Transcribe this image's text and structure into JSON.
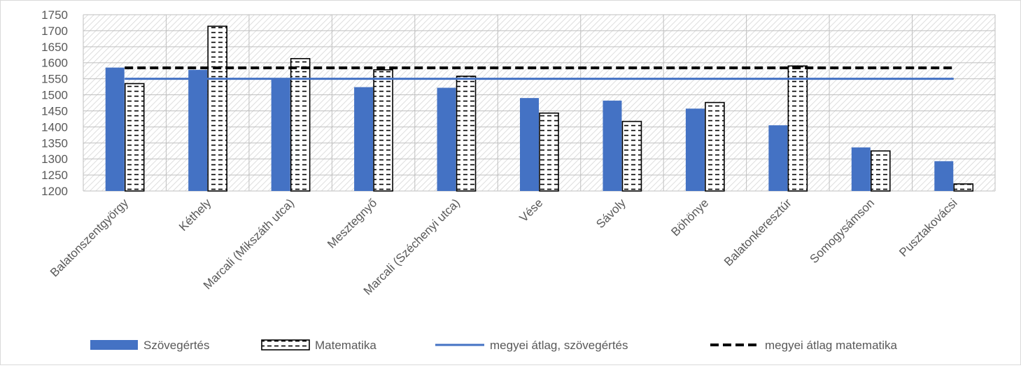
{
  "chart_data": {
    "type": "bar",
    "categories": [
      "Balatonszentgyörgy",
      "Kéthely",
      "Marcali (Mikszáth utca)",
      "Mesztegnyő",
      "Marcali (Széchenyi utca)",
      "Vése",
      "Sávoly",
      "Böhönye",
      "Balatonkeresztúr",
      "Somogysámson",
      "Pusztakovácsi"
    ],
    "series": [
      {
        "name": "Szövegértés",
        "values": [
          1585,
          1578,
          1551,
          1524,
          1522,
          1490,
          1482,
          1457,
          1405,
          1336,
          1293
        ],
        "color": "#4472c4"
      },
      {
        "name": "Matematika",
        "values": [
          1535,
          1714,
          1613,
          1578,
          1558,
          1443,
          1417,
          1476,
          1590,
          1325,
          1222
        ],
        "color": "#ffffff",
        "pattern": "dashed-horizontal"
      }
    ],
    "reference_lines": [
      {
        "name": "megyei átlag, szövegértés",
        "value": 1550,
        "color": "#4472c4",
        "style": "solid"
      },
      {
        "name": "megyei átlag matematika",
        "value": 1584,
        "color": "#000000",
        "style": "dashed"
      }
    ],
    "yticks": [
      "1200",
      "1250",
      "1300",
      "1350",
      "1400",
      "1450",
      "1500",
      "1550",
      "1600",
      "1650",
      "1700",
      "1750"
    ],
    "ylim": [
      1200,
      1750
    ],
    "grid": true,
    "legend_position": "bottom"
  }
}
